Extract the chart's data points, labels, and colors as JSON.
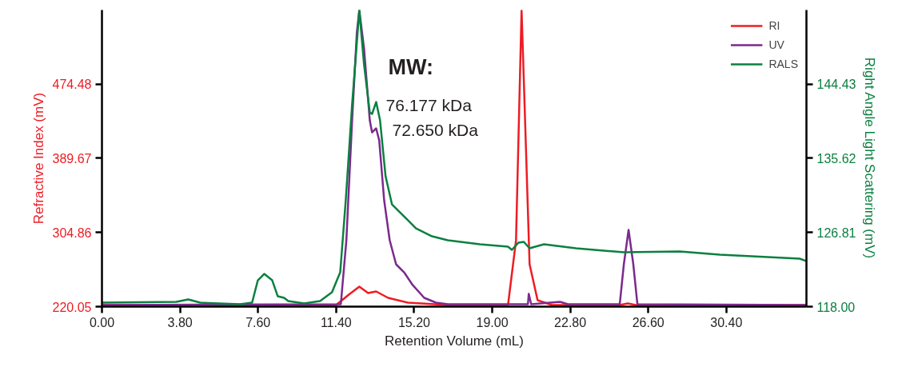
{
  "chart_data": {
    "type": "line",
    "xlabel": "Retention Volume (mL)",
    "ylabel": "Refractive Index (mV)",
    "y2label": "Right Angle Light Scattering (mV)",
    "xlim": [
      0,
      34.3
    ],
    "ylim": [
      220.05,
      559.2
    ],
    "y2lim": [
      118.0,
      153.23
    ],
    "xticks": [
      {
        "value": 0,
        "label": "0.00"
      },
      {
        "value": 3.8,
        "label": "3.80"
      },
      {
        "value": 7.6,
        "label": "7.60"
      },
      {
        "value": 11.4,
        "label": "11.40"
      },
      {
        "value": 15.2,
        "label": "15.20"
      },
      {
        "value": 19.0,
        "label": "19.00"
      },
      {
        "value": 22.8,
        "label": "22.80"
      },
      {
        "value": 26.6,
        "label": "26.60"
      },
      {
        "value": 30.4,
        "label": "30.40"
      }
    ],
    "yticks": [
      220.05,
      304.86,
      389.67,
      474.48
    ],
    "y2ticks": [
      {
        "value": 118.0,
        "label": "118.00"
      },
      126.81,
      135.62,
      144.43
    ],
    "legend": "top right",
    "grid": false,
    "marker": "none",
    "line_style": "solid",
    "annotations": [
      "MW:",
      "76.177 kDa",
      "72.650 kDa"
    ],
    "series": [
      {
        "name": "RI",
        "color": "#ed1c24",
        "x": [
          0,
          11.4,
          12.02,
          12.53,
          12.96,
          13.35,
          13.93,
          14.9,
          16.84,
          19.77,
          20.16,
          20.43,
          20.54,
          20.82,
          21.21,
          21.91,
          25.21,
          25.6,
          25.99,
          34.3
        ],
        "values": [
          221.9,
          221.9,
          233.8,
          242.9,
          235.6,
          237.4,
          230.1,
          224.6,
          221.9,
          221.9,
          295.9,
          559.0,
          478.7,
          268.5,
          227.4,
          221.9,
          221.9,
          223.7,
          221.9,
          221.9
        ]
      },
      {
        "name": "UV",
        "color": "#7b2a8c",
        "x": [
          0,
          11.63,
          11.9,
          12.18,
          12.41,
          12.53,
          12.76,
          13.04,
          13.15,
          13.35,
          13.5,
          13.74,
          14.01,
          14.32,
          14.71,
          15.1,
          15.69,
          16.26,
          16.84,
          20.74,
          20.78,
          20.9,
          22.3,
          22.69,
          25.21,
          25.41,
          25.64,
          25.87,
          26.07,
          34.3
        ],
        "values": [
          221.9,
          222.8,
          295.9,
          433.0,
          533.5,
          559.0,
          515.2,
          433.0,
          419.3,
          423.9,
          410.1,
          341.6,
          295.9,
          268.5,
          259.3,
          245.6,
          230.1,
          224.6,
          222.8,
          222.8,
          234.7,
          222.8,
          225.5,
          222.8,
          222.8,
          268.5,
          307.8,
          268.5,
          222.8,
          221.9
        ]
      },
      {
        "name": "RALS",
        "color": "#0b8040",
        "axis": "y2",
        "x": [
          0,
          3.62,
          4.2,
          4.79,
          6.73,
          7.31,
          7.59,
          7.9,
          8.29,
          8.56,
          8.87,
          9.07,
          9.84,
          10.62,
          11.2,
          11.6,
          11.87,
          12.18,
          12.53,
          12.76,
          13.04,
          13.15,
          13.35,
          13.54,
          13.81,
          14.12,
          14.51,
          15.29,
          16.07,
          16.84,
          18.4,
          19.77,
          19.96,
          20.27,
          20.54,
          20.82,
          21.52,
          23.07,
          25.41,
          28.13,
          30.08,
          33.97,
          34.28
        ],
        "values": [
          118.47,
          118.57,
          118.85,
          118.47,
          118.28,
          118.47,
          121.13,
          121.89,
          121.13,
          119.23,
          119.04,
          118.66,
          118.38,
          118.66,
          119.71,
          122.08,
          130.63,
          142.02,
          153.2,
          146.77,
          141.07,
          140.88,
          142.3,
          140.12,
          133.47,
          130.15,
          129.2,
          127.3,
          126.35,
          125.88,
          125.4,
          125.12,
          124.74,
          125.59,
          125.69,
          124.93,
          125.4,
          124.93,
          124.46,
          124.55,
          124.17,
          123.7,
          123.42
        ]
      }
    ]
  }
}
